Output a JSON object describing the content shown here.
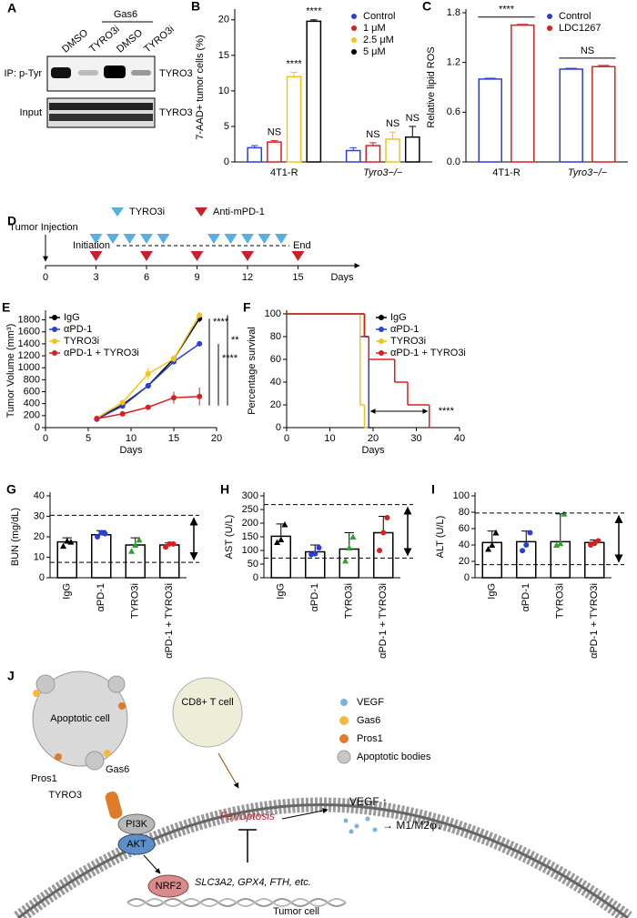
{
  "chart_data": [
    {
      "panel": "B",
      "type": "bar",
      "ylabel": "7-AAD+ tumor cells (%)",
      "categories": [
        "4T1-R",
        "Tyro3−/−"
      ],
      "series": [
        {
          "name": "Control",
          "color": "#2b3fd6",
          "values": [
            2.0,
            1.6
          ],
          "errors": [
            0.3,
            0.4
          ],
          "significance": [
            null,
            null
          ]
        },
        {
          "name": "1 μM",
          "color": "#d62020",
          "values": [
            2.8,
            2.3
          ],
          "errors": [
            0.2,
            0.4
          ],
          "significance": [
            "NS",
            "NS"
          ]
        },
        {
          "name": "2.5 μM",
          "color": "#f0c419",
          "values": [
            12.0,
            3.2
          ],
          "errors": [
            0.6,
            1.0
          ],
          "significance": [
            "****",
            "NS"
          ]
        },
        {
          "name": "5 μM",
          "color": "#000000",
          "values": [
            19.8,
            3.5
          ],
          "errors": [
            0.2,
            1.5
          ],
          "significance": [
            "****",
            "NS"
          ]
        }
      ],
      "ylim": [
        0,
        21
      ],
      "yticks": [
        0,
        5,
        10,
        15,
        20
      ],
      "legend": "upper right"
    },
    {
      "panel": "C",
      "type": "bar",
      "ylabel": "Relative lipid ROS",
      "categories": [
        "4T1-R",
        "Tyro3−/−"
      ],
      "series": [
        {
          "name": "Control",
          "color": "#2b3fd6",
          "values": [
            1.0,
            1.12
          ],
          "errors": [
            0.01,
            0.01
          ]
        },
        {
          "name": "LDC1267",
          "color": "#d62020",
          "values": [
            1.65,
            1.15
          ],
          "errors": [
            0.01,
            0.015
          ]
        }
      ],
      "ylim": [
        0,
        1.8
      ],
      "yticks": [
        {
          "value": 0,
          "label": "0.0"
        },
        {
          "value": 0.6,
          "label": "0.6"
        },
        {
          "value": 1.2,
          "label": "1.2"
        },
        {
          "value": 1.8,
          "label": "1.8"
        }
      ],
      "comparisons": [
        "****",
        "NS"
      ],
      "legend": "upper right"
    },
    {
      "panel": "E",
      "type": "line",
      "xlabel": "Days",
      "ylabel": "Tumor Volume (mm³)",
      "x": [
        6,
        9,
        12,
        15,
        18
      ],
      "series": [
        {
          "name": "IgG",
          "color": "#000000",
          "values": [
            150,
            380,
            700,
            1150,
            1820
          ],
          "errors": [
            10,
            30,
            40,
            60,
            60
          ]
        },
        {
          "name": "αPD-1",
          "color": "#2b3fd6",
          "values": [
            140,
            360,
            700,
            1100,
            1400
          ],
          "errors": [
            10,
            30,
            30,
            40,
            20
          ]
        },
        {
          "name": "TYRO3i",
          "color": "#f0c419",
          "values": [
            160,
            420,
            900,
            1150,
            1880
          ],
          "errors": [
            10,
            40,
            100,
            60,
            50
          ]
        },
        {
          "name": "αPD-1 + TYRO3i",
          "color": "#d62020",
          "values": [
            150,
            230,
            340,
            500,
            520
          ],
          "errors": [
            10,
            20,
            30,
            100,
            150
          ]
        }
      ],
      "xlim": [
        0,
        20
      ],
      "xticks": [
        0,
        5,
        10,
        15,
        20
      ],
      "ylim": [
        0,
        1900
      ],
      "yticks": [
        0,
        200,
        400,
        600,
        800,
        1000,
        1200,
        1400,
        1600,
        1800
      ],
      "comparisons": [
        "****",
        "****",
        "**"
      ],
      "legend": "upper left"
    },
    {
      "panel": "F",
      "type": "step",
      "xlabel": "Days",
      "ylabel": "Percentage survival",
      "series": [
        {
          "name": "IgG",
          "color": "#000000",
          "x": [
            0,
            18,
            19
          ],
          "values": [
            100,
            80,
            0
          ]
        },
        {
          "name": "αPD-1",
          "color": "#2b3fd6",
          "x": [
            0,
            17,
            19
          ],
          "values": [
            100,
            80,
            0
          ]
        },
        {
          "name": "TYRO3i",
          "color": "#f0c419",
          "x": [
            0,
            17,
            18
          ],
          "values": [
            100,
            20,
            0
          ]
        },
        {
          "name": "αPD-1 + TYRO3i",
          "color": "#d62020",
          "x": [
            0,
            18,
            19,
            25,
            28,
            33
          ],
          "values": [
            100,
            80,
            60,
            40,
            20,
            0
          ]
        }
      ],
      "xlim": [
        0,
        40
      ],
      "xticks": [
        0,
        10,
        20,
        30,
        40
      ],
      "ylim": [
        0,
        100
      ],
      "yticks": [
        0,
        20,
        40,
        60,
        80,
        100
      ],
      "annotation": "****",
      "legend": "upper right"
    },
    {
      "panel": "G",
      "type": "bar",
      "ylabel": "BUN (mg/dL)",
      "categories": [
        "IgG",
        "αPD-1",
        "TYRO3i",
        "αPD-1 + TYRO3i"
      ],
      "values": [
        17.5,
        21,
        16,
        16
      ],
      "errors": [
        2,
        2,
        3.5,
        1
      ],
      "points": [
        [
          15.5,
          18,
          17.5
        ],
        [
          20,
          22,
          21.5
        ],
        [
          13,
          16,
          18.5
        ],
        [
          15,
          16.5,
          16.5
        ]
      ],
      "point_colors": [
        "#000000",
        "#2b3fd6",
        "#2ca02c",
        "#d62020"
      ],
      "color": "#000000",
      "ylim": [
        0,
        40
      ],
      "yticks": [
        0,
        10,
        20,
        30,
        40
      ],
      "reference_lines": [
        30.5,
        7.5
      ]
    },
    {
      "panel": "H",
      "type": "bar",
      "ylabel": "AST (U/L)",
      "categories": [
        "IgG",
        "αPD-1",
        "TYRO3i",
        "αPD-1 + TYRO3i"
      ],
      "values": [
        152,
        95,
        105,
        165
      ],
      "errors": [
        45,
        25,
        60,
        60
      ],
      "points": [
        [
          130,
          140,
          195
        ],
        [
          85,
          88,
          110
        ],
        [
          62,
          110,
          150
        ],
        [
          100,
          165,
          220
        ]
      ],
      "point_colors": [
        "#000000",
        "#2b3fd6",
        "#2ca02c",
        "#d62020"
      ],
      "color": "#000000",
      "ylim": [
        0,
        300
      ],
      "yticks": [
        0,
        50,
        100,
        150,
        200,
        250,
        300
      ],
      "reference_lines": [
        268,
        72
      ]
    },
    {
      "panel": "I",
      "type": "bar",
      "ylabel": "ALT (U/L)",
      "categories": [
        "IgG",
        "αPD-1",
        "TYRO3i",
        "αPD-1 + TYRO3i"
      ],
      "values": [
        43,
        44,
        44,
        43
      ],
      "errors": [
        14,
        13,
        34,
        3
      ],
      "points": [
        [
          35,
          40,
          55
        ],
        [
          33,
          40,
          55
        ],
        [
          40,
          42,
          78
        ],
        [
          40,
          42,
          45
        ]
      ],
      "point_colors": [
        "#000000",
        "#2b3fd6",
        "#2ca02c",
        "#d62020"
      ],
      "color": "#000000",
      "ylim": [
        0,
        100
      ],
      "yticks": [
        0,
        20,
        40,
        60,
        80,
        100
      ],
      "reference_lines": [
        79,
        16
      ]
    }
  ],
  "panel_a": {
    "letter": "A",
    "treatment_header": "Gas6",
    "lanes": [
      "DMSO",
      "TYRO3i",
      "DMSO",
      "TYRO3i"
    ],
    "rows": [
      {
        "label": "IP: p-Tyr",
        "protein": "TYRO3"
      },
      {
        "label": "Input",
        "protein": "TYRO3"
      }
    ]
  },
  "panel_d": {
    "letter": "D",
    "injection": "Tumor Injection",
    "initiation": "Initiation",
    "end": "End",
    "legend": [
      {
        "name": "TYRO3i",
        "color": "#5aaee0"
      },
      {
        "name": "Anti-mPD-1",
        "color": "#c8202c"
      }
    ],
    "xlabel": "Days",
    "xlim": [
      0,
      18
    ],
    "xticks": [
      0,
      3,
      6,
      9,
      12,
      15
    ],
    "tyro3i_days": [
      3,
      4,
      5,
      6,
      7,
      10,
      11,
      12,
      13,
      14
    ],
    "pd1_days": [
      3,
      6,
      9,
      12,
      15
    ]
  },
  "panel_j": {
    "letter": "J",
    "legend": [
      "VEGF",
      "Gas6",
      "Pros1",
      "Apoptotic bodies"
    ],
    "apoptotic_cell": "Apoptotic cell",
    "pros1": "Pros1",
    "gas6": "Gas6",
    "t_cell": "CD8+ T cell",
    "receptor": "TYRO3",
    "pi3k": "PI3K",
    "akt": "AKT",
    "ferroptosis": "Ferroptosis",
    "vegf": "VEGF ↑",
    "macrophage": "→ M1/M2φ↓",
    "nrf2": "NRF2",
    "genes": "SLC3A2, GPX4, FTH, etc.",
    "cell": "Tumor cell"
  }
}
